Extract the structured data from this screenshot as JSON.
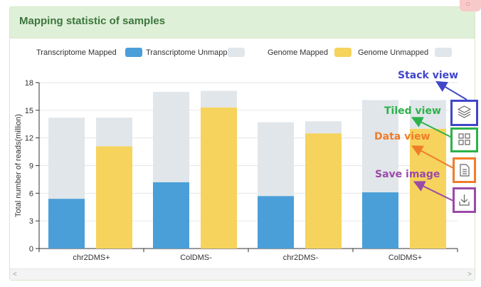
{
  "panel": {
    "title": "Mapping statistic of samples"
  },
  "chart_data": {
    "type": "bar",
    "categories": [
      "chr2DMS+",
      "ColDMS-",
      "chr2DMS-",
      "ColDMS+"
    ],
    "ylabel": "Total number of reads(million)",
    "ylim": [
      0,
      18
    ],
    "yticks": [
      0,
      3,
      6,
      9,
      12,
      15,
      18
    ],
    "grid": true,
    "legend_position": "top",
    "stack_groups": [
      {
        "stack": "Transcriptome",
        "series": [
          "Transcriptome Mapped",
          "Transcriptome Unmapped"
        ]
      },
      {
        "stack": "Genome",
        "series": [
          "Genome Mapped",
          "Genome Unmapped"
        ]
      }
    ],
    "series": [
      {
        "name": "Transcriptome Mapped",
        "color": "#4a9fd8",
        "values": [
          5.4,
          7.2,
          5.7,
          6.1
        ]
      },
      {
        "name": "Transcriptome Unmapped",
        "color": "#e1e6ea",
        "values": [
          8.8,
          9.8,
          8.0,
          10.0
        ]
      },
      {
        "name": "Genome Mapped",
        "color": "#f5d35c",
        "values": [
          11.1,
          15.3,
          12.5,
          13.0
        ]
      },
      {
        "name": "Genome Unmapped",
        "color": "#e1e6ea",
        "values": [
          3.1,
          1.8,
          1.3,
          3.1
        ]
      }
    ]
  },
  "toolbox": {
    "stack": {
      "label": "Stack view",
      "color": "#3f46c9"
    },
    "tiled": {
      "label": "Tiled view",
      "color": "#2cb24a"
    },
    "data": {
      "label": "Data view",
      "color": "#f07c2a"
    },
    "save": {
      "label": "Save image",
      "color": "#9b4aa8"
    }
  }
}
